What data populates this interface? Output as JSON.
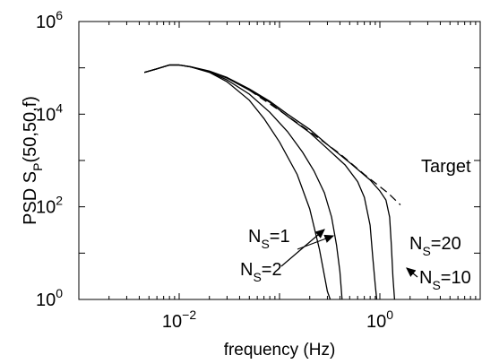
{
  "chart_data": {
    "type": "line",
    "xlabel": "frequency (Hz)",
    "ylabel_main": "PSD S",
    "ylabel_sub": "P",
    "ylabel_tail": "(50,50,f)",
    "x_scale": "log",
    "y_scale": "log",
    "xlim": [
      0.001,
      10
    ],
    "ylim": [
      1,
      1000000
    ],
    "x_ticks": [
      {
        "value": 0.01,
        "base": "10",
        "exp": "−2"
      },
      {
        "value": 1,
        "base": "10",
        "exp": "0"
      }
    ],
    "y_ticks": [
      {
        "value": 1,
        "base": "10",
        "exp": "0"
      },
      {
        "value": 100,
        "base": "10",
        "exp": "2"
      },
      {
        "value": 10000,
        "base": "10",
        "exp": "4"
      },
      {
        "value": 1000000,
        "base": "10",
        "exp": "6"
      }
    ],
    "grid": false,
    "series": [
      {
        "key": "ns1",
        "style": "solid",
        "points": [
          [
            0.0045,
            80000
          ],
          [
            0.006,
            95000
          ],
          [
            0.008,
            115000
          ],
          [
            0.01,
            115000
          ],
          [
            0.013,
            105000
          ],
          [
            0.02,
            80000
          ],
          [
            0.03,
            50000
          ],
          [
            0.05,
            20000
          ],
          [
            0.07,
            8000
          ],
          [
            0.1,
            2500
          ],
          [
            0.15,
            500
          ],
          [
            0.2,
            90
          ],
          [
            0.25,
            12
          ],
          [
            0.3,
            1.5
          ],
          [
            0.32,
            1
          ]
        ]
      },
      {
        "key": "ns2",
        "style": "solid",
        "points": [
          [
            0.0045,
            80000
          ],
          [
            0.006,
            95000
          ],
          [
            0.008,
            115000
          ],
          [
            0.01,
            115000
          ],
          [
            0.013,
            105000
          ],
          [
            0.02,
            82000
          ],
          [
            0.03,
            55000
          ],
          [
            0.05,
            27000
          ],
          [
            0.08,
            11000
          ],
          [
            0.12,
            4200
          ],
          [
            0.17,
            1500
          ],
          [
            0.22,
            600
          ],
          [
            0.28,
            200
          ],
          [
            0.33,
            60
          ],
          [
            0.37,
            15
          ],
          [
            0.4,
            4
          ],
          [
            0.42,
            1
          ]
        ]
      },
      {
        "key": "ns10",
        "style": "solid",
        "points": [
          [
            0.0045,
            80000
          ],
          [
            0.006,
            95000
          ],
          [
            0.008,
            115000
          ],
          [
            0.01,
            115000
          ],
          [
            0.013,
            105000
          ],
          [
            0.02,
            84000
          ],
          [
            0.03,
            60000
          ],
          [
            0.05,
            33000
          ],
          [
            0.08,
            18000
          ],
          [
            0.12,
            9000
          ],
          [
            0.2,
            4000
          ],
          [
            0.3,
            1800
          ],
          [
            0.45,
            800
          ],
          [
            0.6,
            350
          ],
          [
            0.7,
            160
          ],
          [
            0.8,
            40
          ],
          [
            0.85,
            8
          ],
          [
            0.9,
            2
          ],
          [
            0.93,
            1
          ]
        ]
      },
      {
        "key": "ns20",
        "style": "solid",
        "points": [
          [
            0.0045,
            80000
          ],
          [
            0.006,
            95000
          ],
          [
            0.008,
            115000
          ],
          [
            0.01,
            115000
          ],
          [
            0.013,
            106000
          ],
          [
            0.02,
            85000
          ],
          [
            0.03,
            62000
          ],
          [
            0.05,
            35000
          ],
          [
            0.08,
            19000
          ],
          [
            0.12,
            10000
          ],
          [
            0.2,
            4700
          ],
          [
            0.3,
            2200
          ],
          [
            0.5,
            900
          ],
          [
            0.8,
            380
          ],
          [
            1.0,
            220
          ],
          [
            1.15,
            140
          ],
          [
            1.25,
            60
          ],
          [
            1.3,
            15
          ],
          [
            1.35,
            3
          ],
          [
            1.4,
            1
          ]
        ]
      },
      {
        "key": "target",
        "style": "dashed",
        "points": [
          [
            0.05,
            33000
          ],
          [
            0.1,
            12000
          ],
          [
            0.2,
            4200
          ],
          [
            0.4,
            1400
          ],
          [
            0.7,
            500
          ],
          [
            1.2,
            200
          ],
          [
            1.6,
            110
          ]
        ]
      }
    ],
    "annotations": [
      {
        "key": "target",
        "label": "Target"
      },
      {
        "key": "ns1",
        "main": "N",
        "sub": "S",
        "tail": "=1"
      },
      {
        "key": "ns2",
        "main": "N",
        "sub": "S",
        "tail": "=2"
      },
      {
        "key": "ns10",
        "main": "N",
        "sub": "S",
        "tail": "=10"
      },
      {
        "key": "ns20",
        "main": "N",
        "sub": "S",
        "tail": "=20"
      }
    ]
  }
}
